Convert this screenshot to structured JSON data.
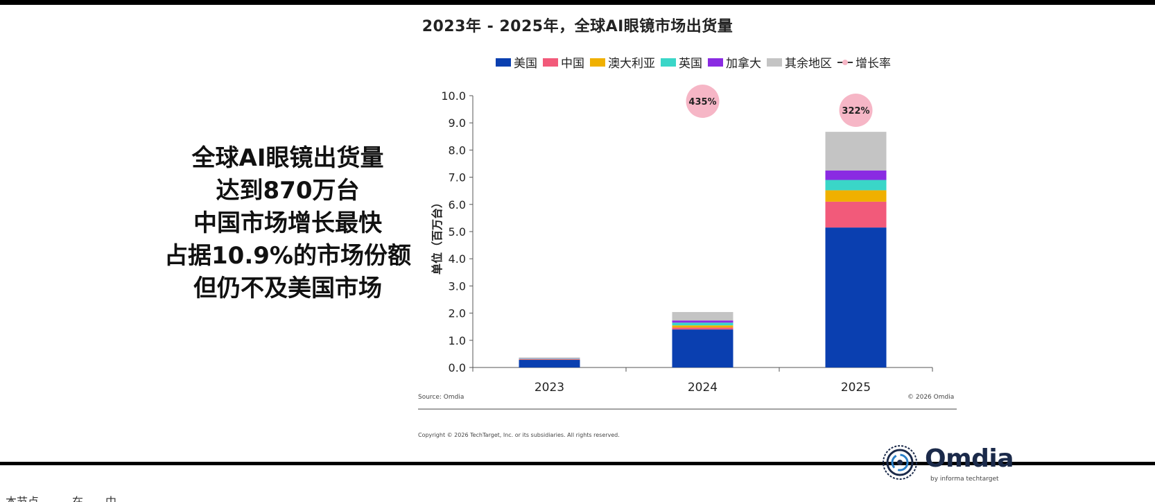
{
  "headline": {
    "lines": [
      "全球AI眼镜出货量",
      "达到870万台",
      "中国市场增长最快",
      "占据10.9%的市场份额",
      "但仍不及美国市场"
    ]
  },
  "footer": {
    "source": "Source: Omdia",
    "copyright_right": "© 2026 Omdia",
    "copyright_bottom": "Copyright © 2026 TechTarget, Inc. or its subsidiaries. All rights reserved.",
    "logo_text": "Omdia",
    "logo_byline": "by informa techtarget"
  },
  "cutoff_text": "本节点，……在……中……",
  "colors": {
    "us": "#0a3fb0",
    "china": "#f25a7a",
    "australia": "#f0b000",
    "uk": "#3ad6c8",
    "canada": "#8a2be2",
    "other": "#c4c4c4",
    "growth": "#f6b6c6"
  },
  "chart_data": {
    "type": "bar",
    "stacked": true,
    "title": "2023年 - 2025年，全球AI眼镜市场出货量",
    "ylabel": "单位（百万台）",
    "xlabel": "",
    "ylim": [
      0,
      10
    ],
    "yticks": [
      "0.0",
      "1.0",
      "2.0",
      "3.0",
      "4.0",
      "5.0",
      "6.0",
      "7.0",
      "8.0",
      "9.0",
      "10.0"
    ],
    "categories": [
      "2023",
      "2024",
      "2025"
    ],
    "series": [
      {
        "name": "美国",
        "values": [
          0.28,
          1.4,
          5.15
        ]
      },
      {
        "name": "中国",
        "values": [
          0.02,
          0.07,
          0.95
        ]
      },
      {
        "name": "澳大利亚",
        "values": [
          0.01,
          0.08,
          0.42
        ]
      },
      {
        "name": "英国",
        "values": [
          0.01,
          0.1,
          0.38
        ]
      },
      {
        "name": "加拿大",
        "values": [
          0.01,
          0.08,
          0.35
        ]
      },
      {
        "name": "其余地区",
        "values": [
          0.04,
          0.31,
          1.42
        ]
      }
    ],
    "growth_rate": {
      "name": "增长率",
      "labels": [
        "",
        "435%",
        "322%"
      ]
    },
    "legend_position": "top",
    "grid": false
  }
}
